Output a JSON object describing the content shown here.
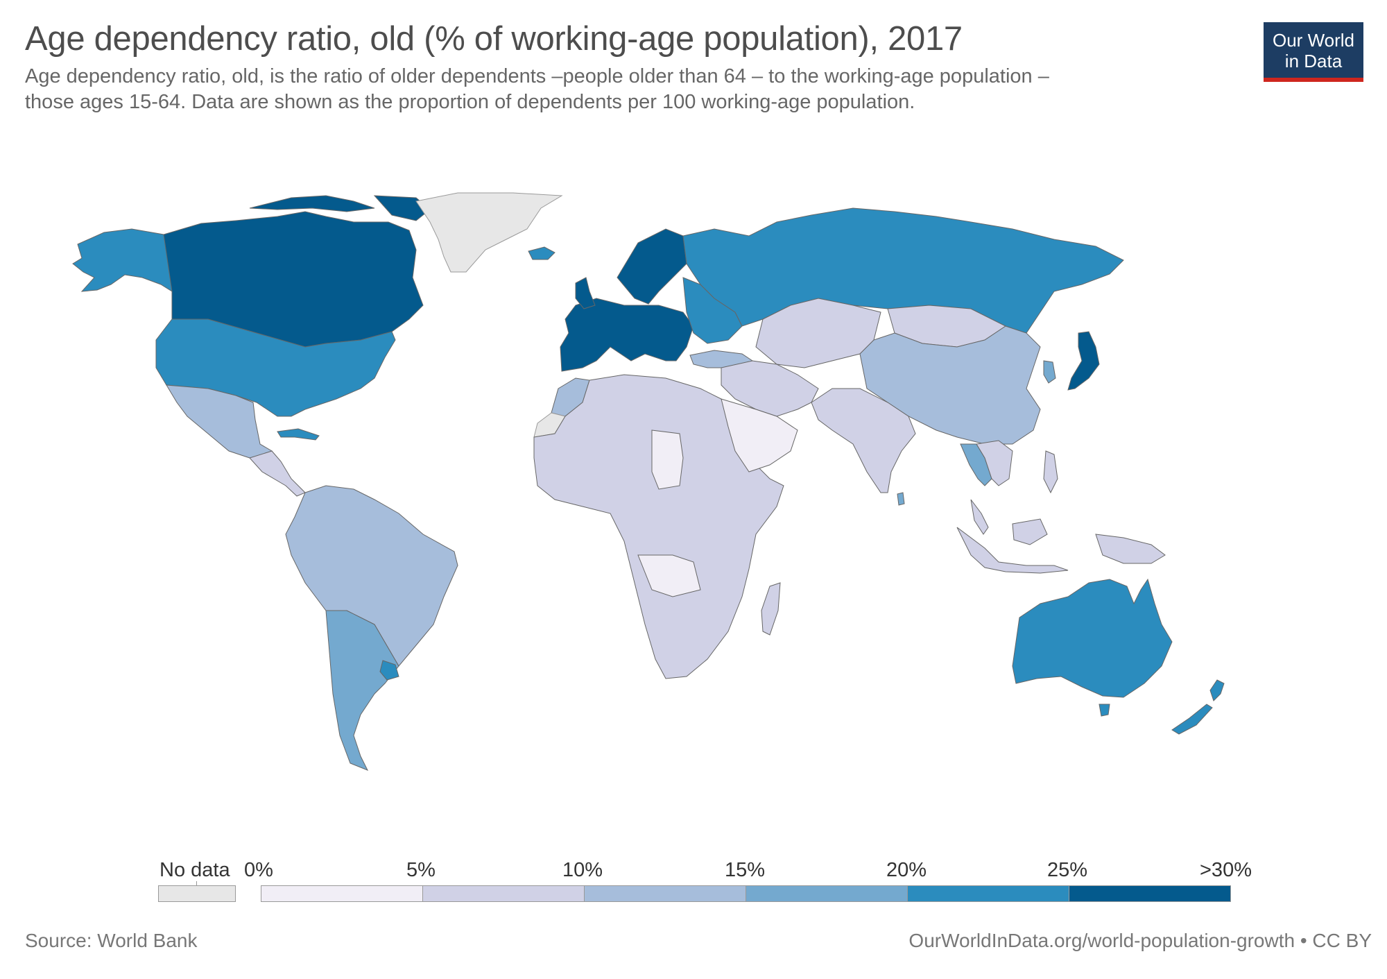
{
  "header": {
    "title": "Age dependency ratio, old (% of working-age population), 2017",
    "subtitle_line1": "Age dependency ratio, old, is the ratio of older dependents –people older than 64 – to the working-age population –",
    "subtitle_line2": "those ages 15-64. Data are shown as the proportion of dependents per 100 working-age population."
  },
  "logo": {
    "line1": "Our World",
    "line2": "in Data"
  },
  "legend": {
    "nodata_label": "No data",
    "nodata_color": "#e7e7e7",
    "bins": [
      {
        "from": "0%",
        "color": "#f1eef6"
      },
      {
        "from": "5%",
        "color": "#d0d1e6"
      },
      {
        "from": "10%",
        "color": "#a6bddb"
      },
      {
        "from": "15%",
        "color": "#74a9cf"
      },
      {
        "from": "20%",
        "color": "#2b8cbe"
      },
      {
        "from": "25%",
        "color": "#045a8d",
        "to": ">30%"
      }
    ]
  },
  "regions": [
    {
      "name": "Canada",
      "color": "#045a8d"
    },
    {
      "name": "Alaska (United States)",
      "color": "#2b8cbe"
    },
    {
      "name": "Greenland",
      "color": "#e7e7e7"
    },
    {
      "name": "United States",
      "color": "#2b8cbe"
    },
    {
      "name": "Mexico",
      "color": "#a6bddb"
    },
    {
      "name": "Central America",
      "color": "#d0d1e6"
    },
    {
      "name": "Cuba",
      "color": "#2b8cbe"
    },
    {
      "name": "South America",
      "color": "#a6bddb"
    },
    {
      "name": "Argentina",
      "color": "#74a9cf"
    },
    {
      "name": "Chile",
      "color": "#74a9cf"
    },
    {
      "name": "Uruguay",
      "color": "#2b8cbe"
    },
    {
      "name": "Iceland",
      "color": "#2b8cbe"
    },
    {
      "name": "Western Europe",
      "color": "#045a8d"
    },
    {
      "name": "Scandinavia",
      "color": "#045a8d"
    },
    {
      "name": "Eastern Europe",
      "color": "#2b8cbe"
    },
    {
      "name": "Russia",
      "color": "#2b8cbe"
    },
    {
      "name": "Turkey",
      "color": "#a6bddb"
    },
    {
      "name": "Africa",
      "color": "#d0d1e6"
    },
    {
      "name": "Sahel",
      "color": "#f1eef6"
    },
    {
      "name": "Morocco",
      "color": "#a6bddb"
    },
    {
      "name": "Middle East",
      "color": "#d0d1e6"
    },
    {
      "name": "Arabian Peninsula",
      "color": "#f1eef6"
    },
    {
      "name": "Central Asia",
      "color": "#d0d1e6"
    },
    {
      "name": "Mongolia",
      "color": "#d0d1e6"
    },
    {
      "name": "China",
      "color": "#a6bddb"
    },
    {
      "name": "India",
      "color": "#d0d1e6"
    },
    {
      "name": "Sri Lanka",
      "color": "#74a9cf"
    },
    {
      "name": "Thailand",
      "color": "#74a9cf"
    },
    {
      "name": "Southeast Asia",
      "color": "#d0d1e6"
    },
    {
      "name": "Korea",
      "color": "#74a9cf"
    },
    {
      "name": "Japan",
      "color": "#045a8d"
    },
    {
      "name": "Australia",
      "color": "#2b8cbe"
    },
    {
      "name": "New Zealand",
      "color": "#2b8cbe"
    },
    {
      "name": "Madagascar",
      "color": "#d0d1e6"
    },
    {
      "name": "Indonesia",
      "color": "#d0d1e6"
    },
    {
      "name": "Papua New Guinea",
      "color": "#d0d1e6"
    },
    {
      "name": "Philippines",
      "color": "#d0d1e6"
    },
    {
      "name": "Western Sahara",
      "color": "#e7e7e7"
    }
  ],
  "footer": {
    "source": "Source: World Bank",
    "url": "OurWorldInData.org/world-population-growth • CC BY"
  }
}
